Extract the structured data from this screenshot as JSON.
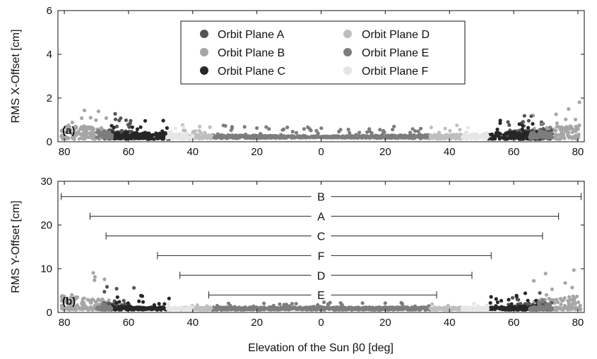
{
  "colors": {
    "A": "#555555",
    "B": "#a6a6a6",
    "C": "#262626",
    "D": "#bebebe",
    "E": "#7d7d7d",
    "F": "#e6e6e6"
  },
  "chart_data": [
    {
      "type": "scatter",
      "panel_label": "(a)",
      "ylabel": "RMS X-Offset [cm]",
      "xlabel": "",
      "x_tick_labels": [
        "80",
        "60",
        "40",
        "20",
        "0",
        "20",
        "40",
        "60",
        "80"
      ],
      "x_tick_values": [
        -80,
        -60,
        -40,
        -20,
        0,
        20,
        40,
        60,
        80
      ],
      "ylim": [
        0,
        6
      ],
      "y_ticks": [
        "0",
        "2",
        "4",
        "6"
      ],
      "legend": {
        "placement": "top-center",
        "entries": [
          {
            "key": "A",
            "label": "Orbit Plane A"
          },
          {
            "key": "B",
            "label": "Orbit Plane B"
          },
          {
            "key": "C",
            "label": "Orbit Plane C"
          },
          {
            "key": "D",
            "label": "Orbit Plane D"
          },
          {
            "key": "E",
            "label": "Orbit Plane E"
          },
          {
            "key": "F",
            "label": "Orbit Plane F"
          }
        ]
      },
      "series": [
        {
          "key": "B",
          "beta_ranges": [
            [
              -81,
              -66
            ],
            [
              66,
              81
            ]
          ],
          "base": 0.22,
          "coef": 0.01,
          "spread": 0.45
        },
        {
          "key": "A",
          "beta_ranges": [
            [
              -68,
              -58
            ],
            [
              58,
              72
            ]
          ],
          "base": 0.22,
          "coef": 0.009,
          "spread": 0.35
        },
        {
          "key": "C",
          "beta_ranges": [
            [
              -66,
              -47
            ],
            [
              52,
              68
            ]
          ],
          "base": 0.22,
          "coef": 0.008,
          "spread": 0.25
        },
        {
          "key": "E",
          "beta_ranges": [
            [
              -34,
              34
            ],
            [
              -70,
              -65
            ],
            [
              65,
              72
            ]
          ],
          "base": 0.22,
          "coef": 0.009,
          "spread": 0.2
        },
        {
          "key": "D",
          "beta_ranges": [
            [
              -44,
              -34
            ],
            [
              34,
              44
            ]
          ],
          "base": 0.22,
          "coef": 0.006,
          "spread": 0.2
        },
        {
          "key": "F",
          "beta_ranges": [
            [
              -48,
              -40
            ],
            [
              44,
              52
            ]
          ],
          "base": 0.22,
          "coef": 0.006,
          "spread": 0.2
        }
      ]
    },
    {
      "type": "scatter",
      "panel_label": "(b)",
      "ylabel": "RMS Y-Offset [cm]",
      "xlabel": "Elevation of the Sun β0 [deg]",
      "x_tick_labels": [
        "80",
        "60",
        "40",
        "20",
        "0",
        "20",
        "40",
        "60",
        "80"
      ],
      "x_tick_values": [
        -80,
        -60,
        -40,
        -20,
        0,
        20,
        40,
        60,
        80
      ],
      "ylim": [
        0,
        30
      ],
      "y_ticks": [
        "0",
        "10",
        "20",
        "30"
      ],
      "beta_ranges": [
        {
          "label": "B",
          "from": -81,
          "to": 81,
          "y": 26.5
        },
        {
          "label": "A",
          "from": -72,
          "to": 74,
          "y": 22
        },
        {
          "label": "C",
          "from": -67,
          "to": 69,
          "y": 17.5
        },
        {
          "label": "F",
          "from": -51,
          "to": 53,
          "y": 13
        },
        {
          "label": "D",
          "from": -44,
          "to": 47,
          "y": 8.5
        },
        {
          "label": "E",
          "from": -35,
          "to": 36,
          "y": 4
        }
      ],
      "series": [
        {
          "key": "B",
          "beta_ranges": [
            [
              -81,
              -66
            ],
            [
              66,
              81
            ]
          ],
          "base": 0.3,
          "coef": 0.058,
          "spread": 3.0
        },
        {
          "key": "A",
          "beta_ranges": [
            [
              -68,
              -58
            ],
            [
              58,
              72
            ]
          ],
          "base": 0.3,
          "coef": 0.05,
          "spread": 2.0
        },
        {
          "key": "C",
          "beta_ranges": [
            [
              -66,
              -47
            ],
            [
              52,
              68
            ]
          ],
          "base": 0.3,
          "coef": 0.045,
          "spread": 1.2
        },
        {
          "key": "E",
          "beta_ranges": [
            [
              -34,
              34
            ],
            [
              -70,
              -65
            ],
            [
              65,
              72
            ]
          ],
          "base": 0.3,
          "coef": 0.05,
          "spread": 0.8
        },
        {
          "key": "D",
          "beta_ranges": [
            [
              -44,
              -34
            ],
            [
              34,
              44
            ]
          ],
          "base": 0.3,
          "coef": 0.035,
          "spread": 0.6
        },
        {
          "key": "F",
          "beta_ranges": [
            [
              -48,
              -40
            ],
            [
              44,
              52
            ]
          ],
          "base": 0.3,
          "coef": 0.035,
          "spread": 0.6
        }
      ]
    }
  ]
}
